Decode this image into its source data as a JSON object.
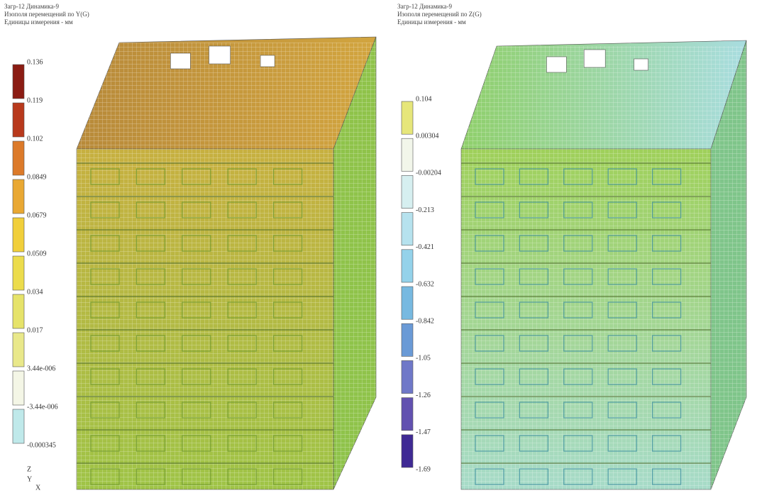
{
  "panels": [
    {
      "header": [
        "Загр-12 Динамика-9",
        "Изополя перемещений по Y(G)",
        "Единицы измерения - мм"
      ],
      "legend": {
        "labels": [
          "0.136",
          "0.119",
          "0.102",
          "0.0849",
          "0.0679",
          "0.0509",
          "0.034",
          "0.017",
          "3.44e-006",
          "-3.44e-006",
          "-0.000345"
        ],
        "colors": [
          "#8b1c13",
          "#b8391c",
          "#dc7a2a",
          "#e9a833",
          "#f1cf3a",
          "#ecdc4c",
          "#e6e36a",
          "#e9e88a",
          "#f4f6e6",
          "#bfe9ea"
        ]
      }
    },
    {
      "header": [
        "Загр-12 Динамика-9",
        "Изополя перемещений по Z(G)",
        "Единицы измерения - мм"
      ],
      "legend": {
        "labels": [
          "0.104",
          "0.00304",
          "-0.00204",
          "-0.213",
          "-0.421",
          "-0.632",
          "-0.842",
          "-1.05",
          "-1.26",
          "-1.47",
          "-1.69"
        ],
        "colors": [
          "#e6e67a",
          "#f2f6ea",
          "#d6eff0",
          "#b6e2ee",
          "#94d2ea",
          "#77b9e0",
          "#6a9ad6",
          "#6f78c8",
          "#6251b0",
          "#3f2a94"
        ]
      }
    }
  ],
  "axes": [
    "Z",
    "Y",
    "X"
  ]
}
